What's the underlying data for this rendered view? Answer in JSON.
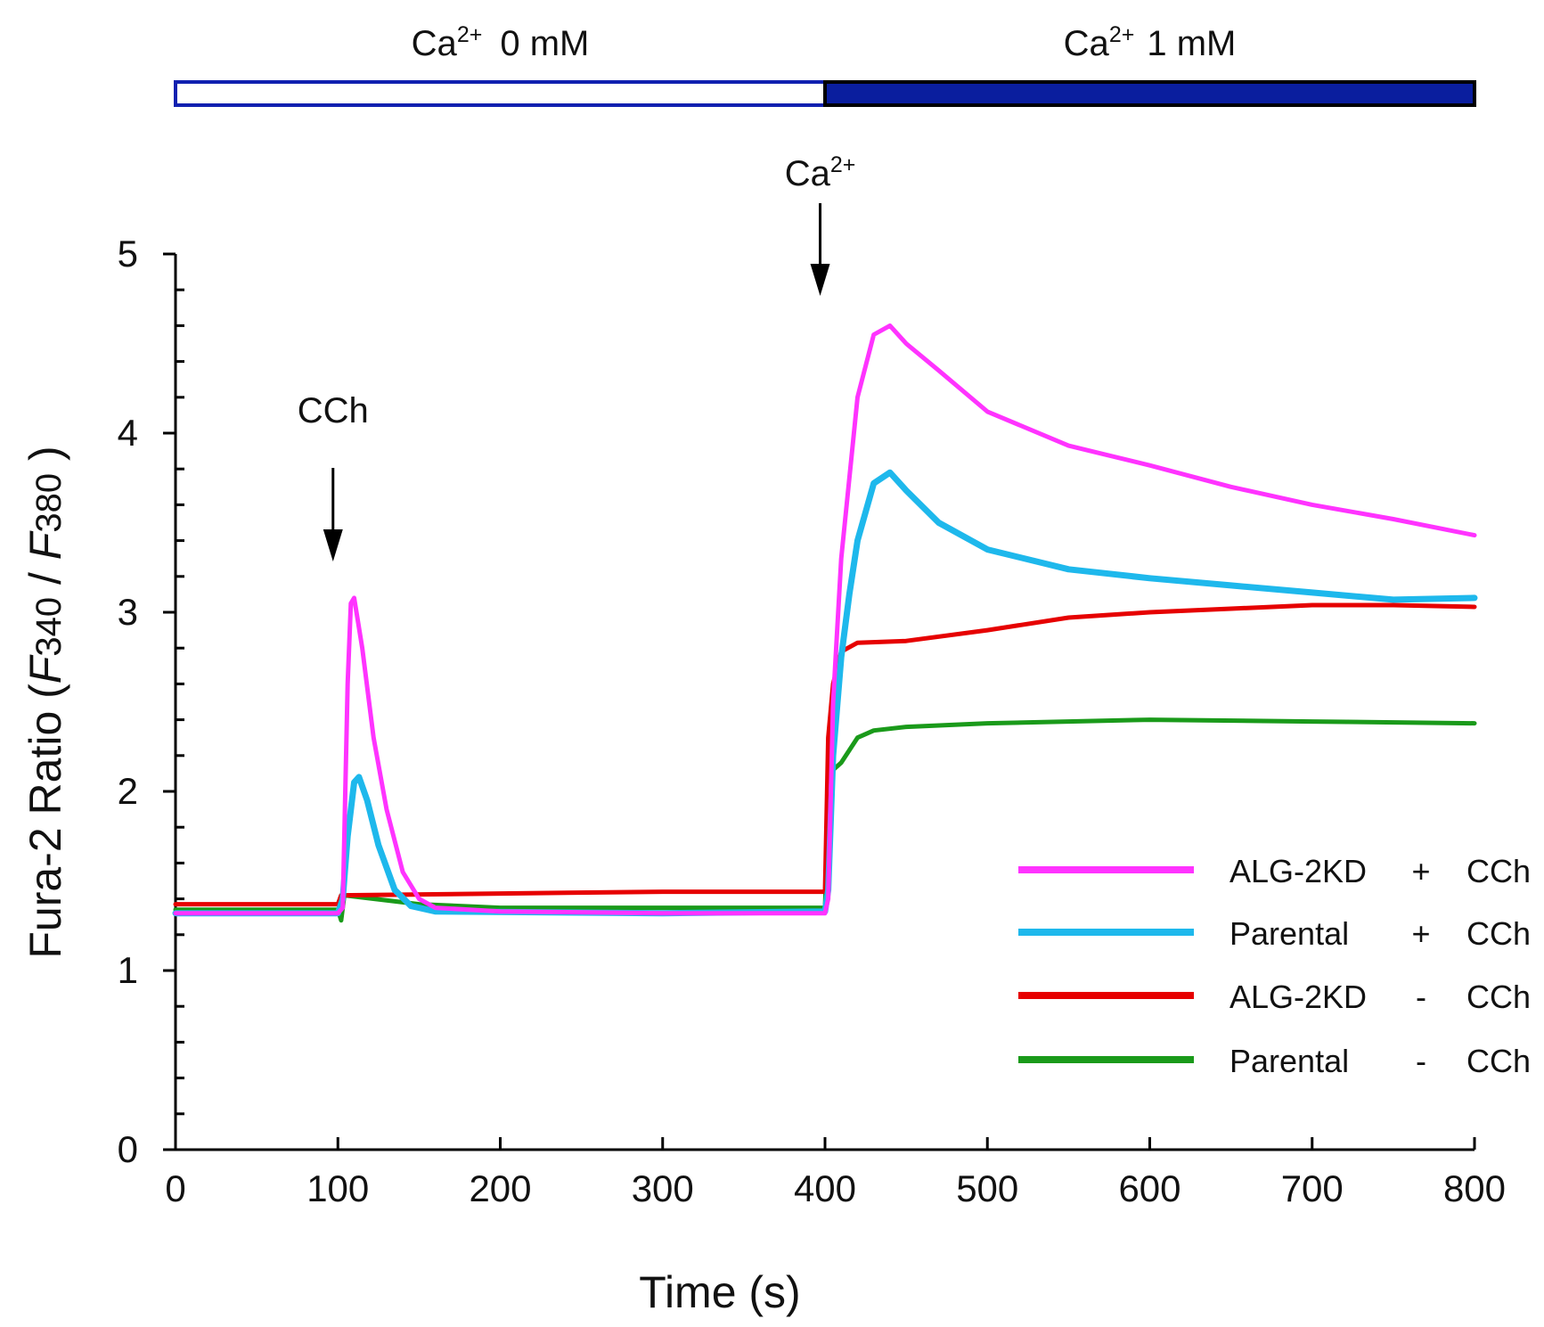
{
  "chart_data": {
    "type": "line",
    "title": "",
    "xlabel": "Time (s)",
    "ylabel": {
      "prefix": "Fura-2 Ratio  (",
      "f1": "F",
      "n1": "340",
      "sep": " / ",
      "f2": "F",
      "n2": "380",
      "suffix": " )"
    },
    "xlim": [
      0,
      800
    ],
    "ylim": [
      0,
      5
    ],
    "xticks": [
      0,
      100,
      200,
      300,
      400,
      500,
      600,
      700,
      800
    ],
    "xtick_labels": [
      "0",
      "100",
      "200",
      "300",
      "400",
      "500",
      "600",
      "700",
      "800"
    ],
    "yticks": [
      0,
      1,
      2,
      3,
      4,
      5
    ],
    "ytick_labels": [
      "0",
      "1",
      "2",
      "3",
      "4",
      "5"
    ],
    "legend_position": "bottom-right",
    "series": [
      {
        "name": "ALG-2KD + CCh",
        "label_group": "ALG-2KD",
        "label_sign": "+",
        "label_drug": "CCh",
        "color": "#ff33ff",
        "points": [
          [
            0,
            1.32
          ],
          [
            100,
            1.32
          ],
          [
            103,
            1.35
          ],
          [
            106,
            2.6
          ],
          [
            108,
            3.05
          ],
          [
            110,
            3.08
          ],
          [
            115,
            2.8
          ],
          [
            122,
            2.3
          ],
          [
            130,
            1.9
          ],
          [
            140,
            1.55
          ],
          [
            150,
            1.4
          ],
          [
            160,
            1.35
          ],
          [
            200,
            1.33
          ],
          [
            300,
            1.32
          ],
          [
            400,
            1.32
          ],
          [
            402,
            1.4
          ],
          [
            405,
            2.5
          ],
          [
            410,
            3.3
          ],
          [
            420,
            4.2
          ],
          [
            430,
            4.55
          ],
          [
            440,
            4.6
          ],
          [
            450,
            4.5
          ],
          [
            470,
            4.35
          ],
          [
            500,
            4.12
          ],
          [
            550,
            3.93
          ],
          [
            600,
            3.82
          ],
          [
            650,
            3.7
          ],
          [
            700,
            3.6
          ],
          [
            750,
            3.52
          ],
          [
            800,
            3.43
          ]
        ]
      },
      {
        "name": "Parental + CCh",
        "label_group": "Parental",
        "label_sign": "+",
        "label_drug": "CCh",
        "color": "#1eb8ec",
        "points": [
          [
            0,
            1.32
          ],
          [
            100,
            1.32
          ],
          [
            103,
            1.4
          ],
          [
            106,
            1.75
          ],
          [
            110,
            2.05
          ],
          [
            113,
            2.08
          ],
          [
            118,
            1.95
          ],
          [
            125,
            1.7
          ],
          [
            135,
            1.45
          ],
          [
            145,
            1.36
          ],
          [
            160,
            1.33
          ],
          [
            300,
            1.32
          ],
          [
            400,
            1.33
          ],
          [
            402,
            1.45
          ],
          [
            405,
            2.2
          ],
          [
            410,
            2.75
          ],
          [
            415,
            3.1
          ],
          [
            420,
            3.4
          ],
          [
            430,
            3.72
          ],
          [
            440,
            3.78
          ],
          [
            450,
            3.68
          ],
          [
            470,
            3.5
          ],
          [
            500,
            3.35
          ],
          [
            550,
            3.24
          ],
          [
            600,
            3.19
          ],
          [
            650,
            3.15
          ],
          [
            700,
            3.11
          ],
          [
            750,
            3.07
          ],
          [
            800,
            3.08
          ]
        ]
      },
      {
        "name": "ALG-2KD - CCh",
        "label_group": "ALG-2KD",
        "label_sign": "-",
        "label_drug": "CCh",
        "color": "#e60000",
        "points": [
          [
            0,
            1.37
          ],
          [
            100,
            1.37
          ],
          [
            102,
            1.42
          ],
          [
            200,
            1.43
          ],
          [
            300,
            1.44
          ],
          [
            400,
            1.44
          ],
          [
            402,
            2.3
          ],
          [
            405,
            2.6
          ],
          [
            410,
            2.78
          ],
          [
            420,
            2.83
          ],
          [
            450,
            2.84
          ],
          [
            500,
            2.9
          ],
          [
            550,
            2.97
          ],
          [
            600,
            3.0
          ],
          [
            650,
            3.02
          ],
          [
            700,
            3.04
          ],
          [
            750,
            3.04
          ],
          [
            800,
            3.03
          ]
        ]
      },
      {
        "name": "Parental - CCh",
        "label_group": "Parental",
        "label_sign": "-",
        "label_drug": "CCh",
        "color": "#1a9a1a",
        "points": [
          [
            0,
            1.34
          ],
          [
            100,
            1.34
          ],
          [
            102,
            1.28
          ],
          [
            104,
            1.42
          ],
          [
            150,
            1.37
          ],
          [
            200,
            1.35
          ],
          [
            300,
            1.35
          ],
          [
            400,
            1.35
          ],
          [
            402,
            1.9
          ],
          [
            405,
            2.12
          ],
          [
            410,
            2.16
          ],
          [
            420,
            2.3
          ],
          [
            430,
            2.34
          ],
          [
            450,
            2.36
          ],
          [
            500,
            2.38
          ],
          [
            600,
            2.4
          ],
          [
            700,
            2.39
          ],
          [
            800,
            2.38
          ]
        ]
      }
    ],
    "annotations": [
      {
        "text": "CCh",
        "x": 97
      },
      {
        "text": "Ca",
        "superscript": "2+",
        "x": 397
      }
    ],
    "condition_bar": [
      {
        "label": "Ca",
        "superscript": "2+",
        "value_label": "0 mM",
        "x_start": 0,
        "x_end": 400,
        "fill": "#ffffff",
        "stroke": "#1020b0"
      },
      {
        "label": "Ca",
        "superscript": "2+",
        "value_label": "1 mM",
        "x_start": 400,
        "x_end": 800,
        "fill": "#0a1e9e",
        "stroke": "#000000"
      }
    ]
  }
}
